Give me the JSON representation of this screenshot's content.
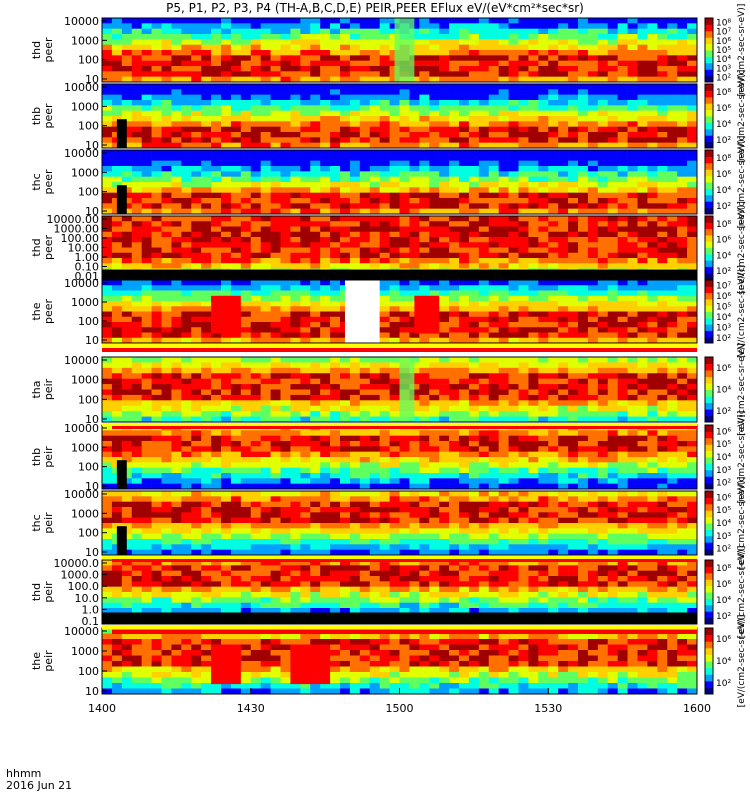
{
  "title": "P5, P1, P2, P3, P4 (TH-A,B,C,D,E) PEIR,PEER EFlux eV/(eV*cm²*sec*sr)",
  "footer": {
    "label": "hhmm",
    "date": "2016 Jun 21"
  },
  "colors": {
    "colormap": [
      "#000080",
      "#0000ff",
      "#00a0ff",
      "#00ffe0",
      "#60ff60",
      "#e0ff00",
      "#ffd000",
      "#ff7000",
      "#ff0000",
      "#a00000"
    ],
    "mode_bar_red": "#ff0000",
    "mode_bar_yellow": "#ffff00"
  },
  "chart_data": {
    "type": "heatmap",
    "x_ticks": [
      "1400",
      "1430",
      "1500",
      "1530",
      "1600"
    ],
    "xlim_minutes": [
      0,
      120
    ],
    "panels": [
      {
        "ylabel": [
          "thd",
          "peer"
        ],
        "ylog": true,
        "yticks": [
          "10",
          "100",
          "1000",
          "10000"
        ],
        "cb_ticks": [
          "10²",
          "10³",
          "10⁴",
          "10⁵",
          "10⁶",
          "10⁷",
          "10⁸"
        ],
        "cb_label": "[eV/(cm2-sec-sr-eV)]",
        "features": {
          "hot_band": [
            0.08,
            0.45
          ],
          "disturbance_minutes": [
            59,
            63
          ]
        }
      },
      {
        "ylabel": [
          "thb",
          "peer"
        ],
        "ylog": true,
        "yticks": [
          "10",
          "100",
          "1000",
          "10000"
        ],
        "cb_ticks": [
          "10²",
          "10⁴",
          "10⁶",
          "10⁸"
        ],
        "cb_label": "[eV/(cm2-sec-sr-eV)]",
        "features": {
          "hot_band": [
            0.05,
            0.35
          ],
          "gap_minutes": [
            3,
            5
          ]
        }
      },
      {
        "ylabel": [
          "thc",
          "peer"
        ],
        "ylog": true,
        "yticks": [
          "10",
          "100",
          "1000",
          "10000"
        ],
        "cb_ticks": [
          "10²",
          "10⁴",
          "10⁶",
          "10⁸"
        ],
        "cb_label": "[eV/(cm2-sec-sr-eV)]",
        "features": {
          "hot_band": [
            0.05,
            0.3
          ],
          "gap_minutes": [
            3,
            5
          ]
        }
      },
      {
        "ylabel": [
          "thd",
          "peer"
        ],
        "ylog": true,
        "yticks": [
          "0.01",
          "0.10",
          "1.00",
          "10.00",
          "100.00",
          "1000.00",
          "10000.00"
        ],
        "cb_ticks": [
          "10²",
          "10⁴",
          "10⁶",
          "10⁸"
        ],
        "cb_label": "[eV/(cm2-sec-sr-eV)]",
        "features": {
          "hot_band": [
            0.3,
            1.0
          ],
          "black_floor": 0.15
        }
      },
      {
        "ylabel": [
          "the",
          "peer"
        ],
        "ylog": true,
        "yticks": [
          "10",
          "100",
          "1000",
          "10000"
        ],
        "cb_ticks": [
          "10²",
          "10³",
          "10⁴",
          "10⁵",
          "10⁶",
          "10⁷"
        ],
        "cb_label": "[eV/(cm2-sec-sr-eV)]",
        "features": {
          "blank_minutes": [
            49,
            56
          ],
          "dense_blocks": [
            [
              22,
              28
            ],
            [
              63,
              68
            ]
          ]
        }
      },
      {
        "ylabel": [
          "tha",
          "peir"
        ],
        "ylog": true,
        "yticks": [
          "10",
          "100",
          "1000",
          "10000"
        ],
        "cb_ticks": [
          "10²",
          "10⁴",
          "10⁶"
        ],
        "cb_label": "[eV/(cm2-sec-sr-eV)]",
        "features": {
          "hot_band": [
            0.35,
            0.75
          ],
          "disturbance_minutes": [
            60,
            63
          ]
        }
      },
      {
        "ylabel": [
          "thb",
          "peir"
        ],
        "ylog": true,
        "yticks": [
          "10",
          "100",
          "1000",
          "10000"
        ],
        "cb_ticks": [
          "10²",
          "10³",
          "10⁴",
          "10⁵",
          "10⁶"
        ],
        "cb_label": "[eV/(cm2-sec-sr-eV)]",
        "features": {
          "hot_band": [
            0.55,
            0.85
          ],
          "gap_minutes": [
            3,
            5
          ]
        }
      },
      {
        "ylabel": [
          "thc",
          "peir"
        ],
        "ylog": true,
        "yticks": [
          "10",
          "100",
          "1000",
          "10000"
        ],
        "cb_ticks": [
          "10²",
          "10³",
          "10⁴",
          "10⁵",
          "10⁶"
        ],
        "cb_label": "[eV/(cm2-sec-sr-eV)]",
        "features": {
          "hot_band": [
            0.5,
            0.85
          ],
          "gap_minutes": [
            3,
            5
          ]
        }
      },
      {
        "ylabel": [
          "thd",
          "peir"
        ],
        "ylog": true,
        "yticks": [
          "0.1",
          "1.0",
          "10.0",
          "100.0",
          "1000.0",
          "10000.0"
        ],
        "cb_ticks": [
          "10²",
          "10⁴",
          "10⁶",
          "10⁸"
        ],
        "cb_label": "[eV/(cm2-sec-sr-eV)]",
        "features": {
          "hot_band": [
            0.6,
            0.95
          ],
          "black_floor": 0.18
        }
      },
      {
        "ylabel": [
          "the",
          "peir"
        ],
        "ylog": true,
        "yticks": [
          "10",
          "100",
          "1000",
          "10000"
        ],
        "cb_ticks": [
          "10²",
          "10⁴",
          "10⁶"
        ],
        "cb_label": "[eV/(cm2-sec-sr-eV)]",
        "features": {
          "dense_blocks": [
            [
              22,
              28
            ],
            [
              38,
              46
            ]
          ],
          "hot_band": [
            0.45,
            0.8
          ]
        }
      }
    ]
  }
}
